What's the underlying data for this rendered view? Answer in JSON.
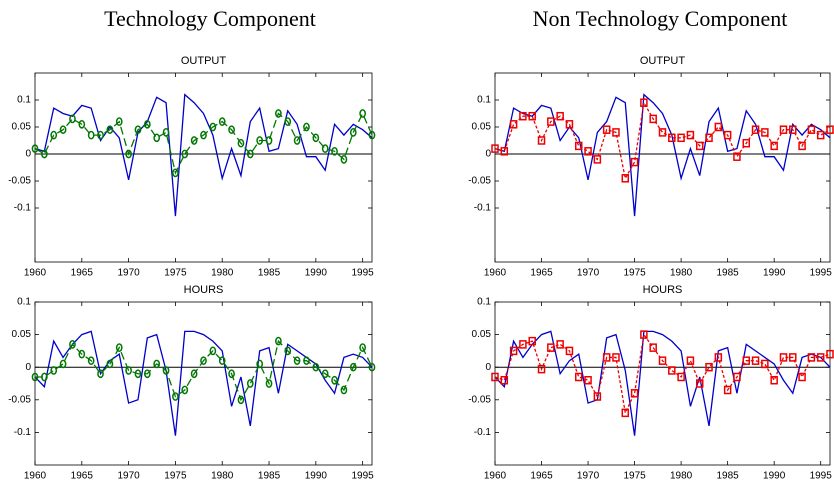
{
  "column_titles": [
    "Technology Component",
    "Non Technology Component"
  ],
  "chart_data": [
    {
      "type": "line",
      "title": "OUTPUT",
      "x": [
        1960,
        1961,
        1962,
        1963,
        1964,
        1965,
        1966,
        1967,
        1968,
        1969,
        1970,
        1971,
        1972,
        1973,
        1974,
        1975,
        1976,
        1977,
        1978,
        1979,
        1980,
        1981,
        1982,
        1983,
        1984,
        1985,
        1986,
        1987,
        1988,
        1989,
        1990,
        1991,
        1992,
        1993,
        1994,
        1995,
        1996
      ],
      "xlim": [
        1960,
        1996
      ],
      "xticks": [
        1960,
        1965,
        1970,
        1975,
        1980,
        1985,
        1990,
        1995
      ],
      "ylim": [
        -0.2,
        0.15
      ],
      "yticks": [
        0.1,
        0.05,
        0,
        -0.05,
        -0.1
      ],
      "zero_line": true,
      "series": [
        {
          "color": "#0000cc",
          "line_style": "solid",
          "values": [
            0.01,
            0.005,
            0.085,
            0.075,
            0.07,
            0.09,
            0.085,
            0.025,
            0.05,
            0.03,
            -0.048,
            0.04,
            0.06,
            0.105,
            0.095,
            -0.115,
            0.11,
            0.095,
            0.075,
            0.035,
            -0.045,
            0.01,
            -0.04,
            0.06,
            0.085,
            0.005,
            0.01,
            0.08,
            0.055,
            -0.005,
            -0.005,
            -0.03,
            0.055,
            0.035,
            0.055,
            0.045,
            0.03
          ]
        },
        {
          "color": "#007700",
          "line_style": "dashed",
          "marker": "circle",
          "values": [
            0.01,
            0.0,
            0.035,
            0.045,
            0.065,
            0.055,
            0.035,
            0.035,
            0.045,
            0.06,
            0.0,
            0.045,
            0.055,
            0.03,
            0.04,
            -0.035,
            0.0,
            0.025,
            0.035,
            0.05,
            0.06,
            0.045,
            0.02,
            0.0,
            0.025,
            0.025,
            0.075,
            0.06,
            0.025,
            0.05,
            0.03,
            0.01,
            0.005,
            -0.01,
            0.04,
            0.075,
            0.035
          ]
        }
      ]
    },
    {
      "type": "line",
      "title": "OUTPUT",
      "x": [
        1960,
        1961,
        1962,
        1963,
        1964,
        1965,
        1966,
        1967,
        1968,
        1969,
        1970,
        1971,
        1972,
        1973,
        1974,
        1975,
        1976,
        1977,
        1978,
        1979,
        1980,
        1981,
        1982,
        1983,
        1984,
        1985,
        1986,
        1987,
        1988,
        1989,
        1990,
        1991,
        1992,
        1993,
        1994,
        1995,
        1996
      ],
      "xlim": [
        1960,
        1996
      ],
      "xticks": [
        1960,
        1965,
        1970,
        1975,
        1980,
        1985,
        1990,
        1995
      ],
      "ylim": [
        -0.2,
        0.15
      ],
      "yticks": [
        0.1,
        0.05,
        0,
        -0.05,
        -0.1
      ],
      "zero_line": true,
      "series": [
        {
          "color": "#0000cc",
          "line_style": "solid",
          "values": [
            0.01,
            0.005,
            0.085,
            0.075,
            0.07,
            0.09,
            0.085,
            0.025,
            0.05,
            0.03,
            -0.048,
            0.04,
            0.06,
            0.105,
            0.095,
            -0.115,
            0.11,
            0.095,
            0.075,
            0.035,
            -0.045,
            0.01,
            -0.04,
            0.06,
            0.085,
            0.005,
            0.01,
            0.08,
            0.055,
            -0.005,
            -0.005,
            -0.03,
            0.055,
            0.035,
            0.055,
            0.045,
            0.03
          ]
        },
        {
          "color": "#ee0000",
          "line_style": "dotted",
          "marker": "square",
          "values": [
            0.01,
            0.005,
            0.055,
            0.07,
            0.07,
            0.025,
            0.06,
            0.07,
            0.055,
            0.015,
            0.005,
            -0.01,
            0.045,
            0.04,
            -0.045,
            -0.015,
            0.095,
            0.065,
            0.04,
            0.03,
            0.03,
            0.035,
            0.015,
            0.03,
            0.05,
            0.035,
            -0.005,
            0.02,
            0.045,
            0.04,
            0.015,
            0.045,
            0.045,
            0.015,
            0.045,
            0.035,
            0.045
          ]
        }
      ]
    },
    {
      "type": "line",
      "title": "HOURS",
      "x": [
        1960,
        1961,
        1962,
        1963,
        1964,
        1965,
        1966,
        1967,
        1968,
        1969,
        1970,
        1971,
        1972,
        1973,
        1974,
        1975,
        1976,
        1977,
        1978,
        1979,
        1980,
        1981,
        1982,
        1983,
        1984,
        1985,
        1986,
        1987,
        1988,
        1989,
        1990,
        1991,
        1992,
        1993,
        1994,
        1995,
        1996
      ],
      "xlim": [
        1960,
        1996
      ],
      "xticks": [
        1960,
        1965,
        1970,
        1975,
        1980,
        1985,
        1990,
        1995
      ],
      "ylim": [
        -0.15,
        0.1
      ],
      "yticks": [
        0.1,
        0.05,
        0,
        -0.05,
        -0.1
      ],
      "zero_line": true,
      "series": [
        {
          "color": "#0000cc",
          "line_style": "solid",
          "values": [
            -0.015,
            -0.03,
            0.04,
            0.015,
            0.035,
            0.05,
            0.055,
            -0.01,
            0.01,
            0.02,
            -0.055,
            -0.05,
            0.045,
            0.05,
            -0.005,
            -0.105,
            0.055,
            0.055,
            0.05,
            0.04,
            0.025,
            -0.06,
            -0.015,
            -0.09,
            0.025,
            0.03,
            -0.04,
            0.035,
            0.025,
            0.015,
            0.005,
            -0.02,
            -0.04,
            0.015,
            0.02,
            0.015,
            0.0
          ]
        },
        {
          "color": "#007700",
          "line_style": "dashed",
          "marker": "circle",
          "values": [
            -0.015,
            -0.015,
            -0.005,
            0.005,
            0.035,
            0.02,
            0.01,
            -0.01,
            0.005,
            0.03,
            -0.005,
            -0.01,
            -0.01,
            0.005,
            -0.005,
            -0.045,
            -0.035,
            -0.01,
            0.01,
            0.025,
            0.01,
            -0.01,
            -0.05,
            -0.025,
            0.005,
            -0.025,
            0.04,
            0.025,
            0.01,
            0.01,
            0.0,
            -0.01,
            -0.02,
            -0.035,
            0.0,
            0.03,
            0.0
          ]
        }
      ]
    },
    {
      "type": "line",
      "title": "HOURS",
      "x": [
        1960,
        1961,
        1962,
        1963,
        1964,
        1965,
        1966,
        1967,
        1968,
        1969,
        1970,
        1971,
        1972,
        1973,
        1974,
        1975,
        1976,
        1977,
        1978,
        1979,
        1980,
        1981,
        1982,
        1983,
        1984,
        1985,
        1986,
        1987,
        1988,
        1989,
        1990,
        1991,
        1992,
        1993,
        1994,
        1995,
        1996
      ],
      "xlim": [
        1960,
        1996
      ],
      "xticks": [
        1960,
        1965,
        1970,
        1975,
        1980,
        1985,
        1990,
        1995
      ],
      "ylim": [
        -0.15,
        0.1
      ],
      "yticks": [
        0.1,
        0.05,
        0,
        -0.05,
        -0.1
      ],
      "zero_line": true,
      "series": [
        {
          "color": "#0000cc",
          "line_style": "solid",
          "values": [
            -0.015,
            -0.03,
            0.04,
            0.015,
            0.035,
            0.05,
            0.055,
            -0.01,
            0.01,
            0.02,
            -0.055,
            -0.05,
            0.045,
            0.05,
            -0.005,
            -0.105,
            0.055,
            0.055,
            0.05,
            0.04,
            0.025,
            -0.06,
            -0.015,
            -0.09,
            0.025,
            0.03,
            -0.04,
            0.035,
            0.025,
            0.015,
            0.005,
            -0.02,
            -0.04,
            0.015,
            0.02,
            0.015,
            0.0
          ]
        },
        {
          "color": "#ee0000",
          "line_style": "dotted",
          "marker": "square",
          "values": [
            -0.015,
            -0.02,
            0.025,
            0.035,
            0.04,
            -0.003,
            0.03,
            0.035,
            0.025,
            -0.015,
            -0.02,
            -0.045,
            0.015,
            0.015,
            -0.07,
            -0.04,
            0.05,
            0.03,
            0.01,
            -0.005,
            -0.015,
            0.01,
            -0.025,
            0.0,
            0.015,
            -0.035,
            -0.015,
            0.01,
            0.01,
            0.005,
            -0.02,
            0.015,
            0.015,
            -0.015,
            0.015,
            0.015,
            0.02
          ]
        }
      ]
    }
  ]
}
